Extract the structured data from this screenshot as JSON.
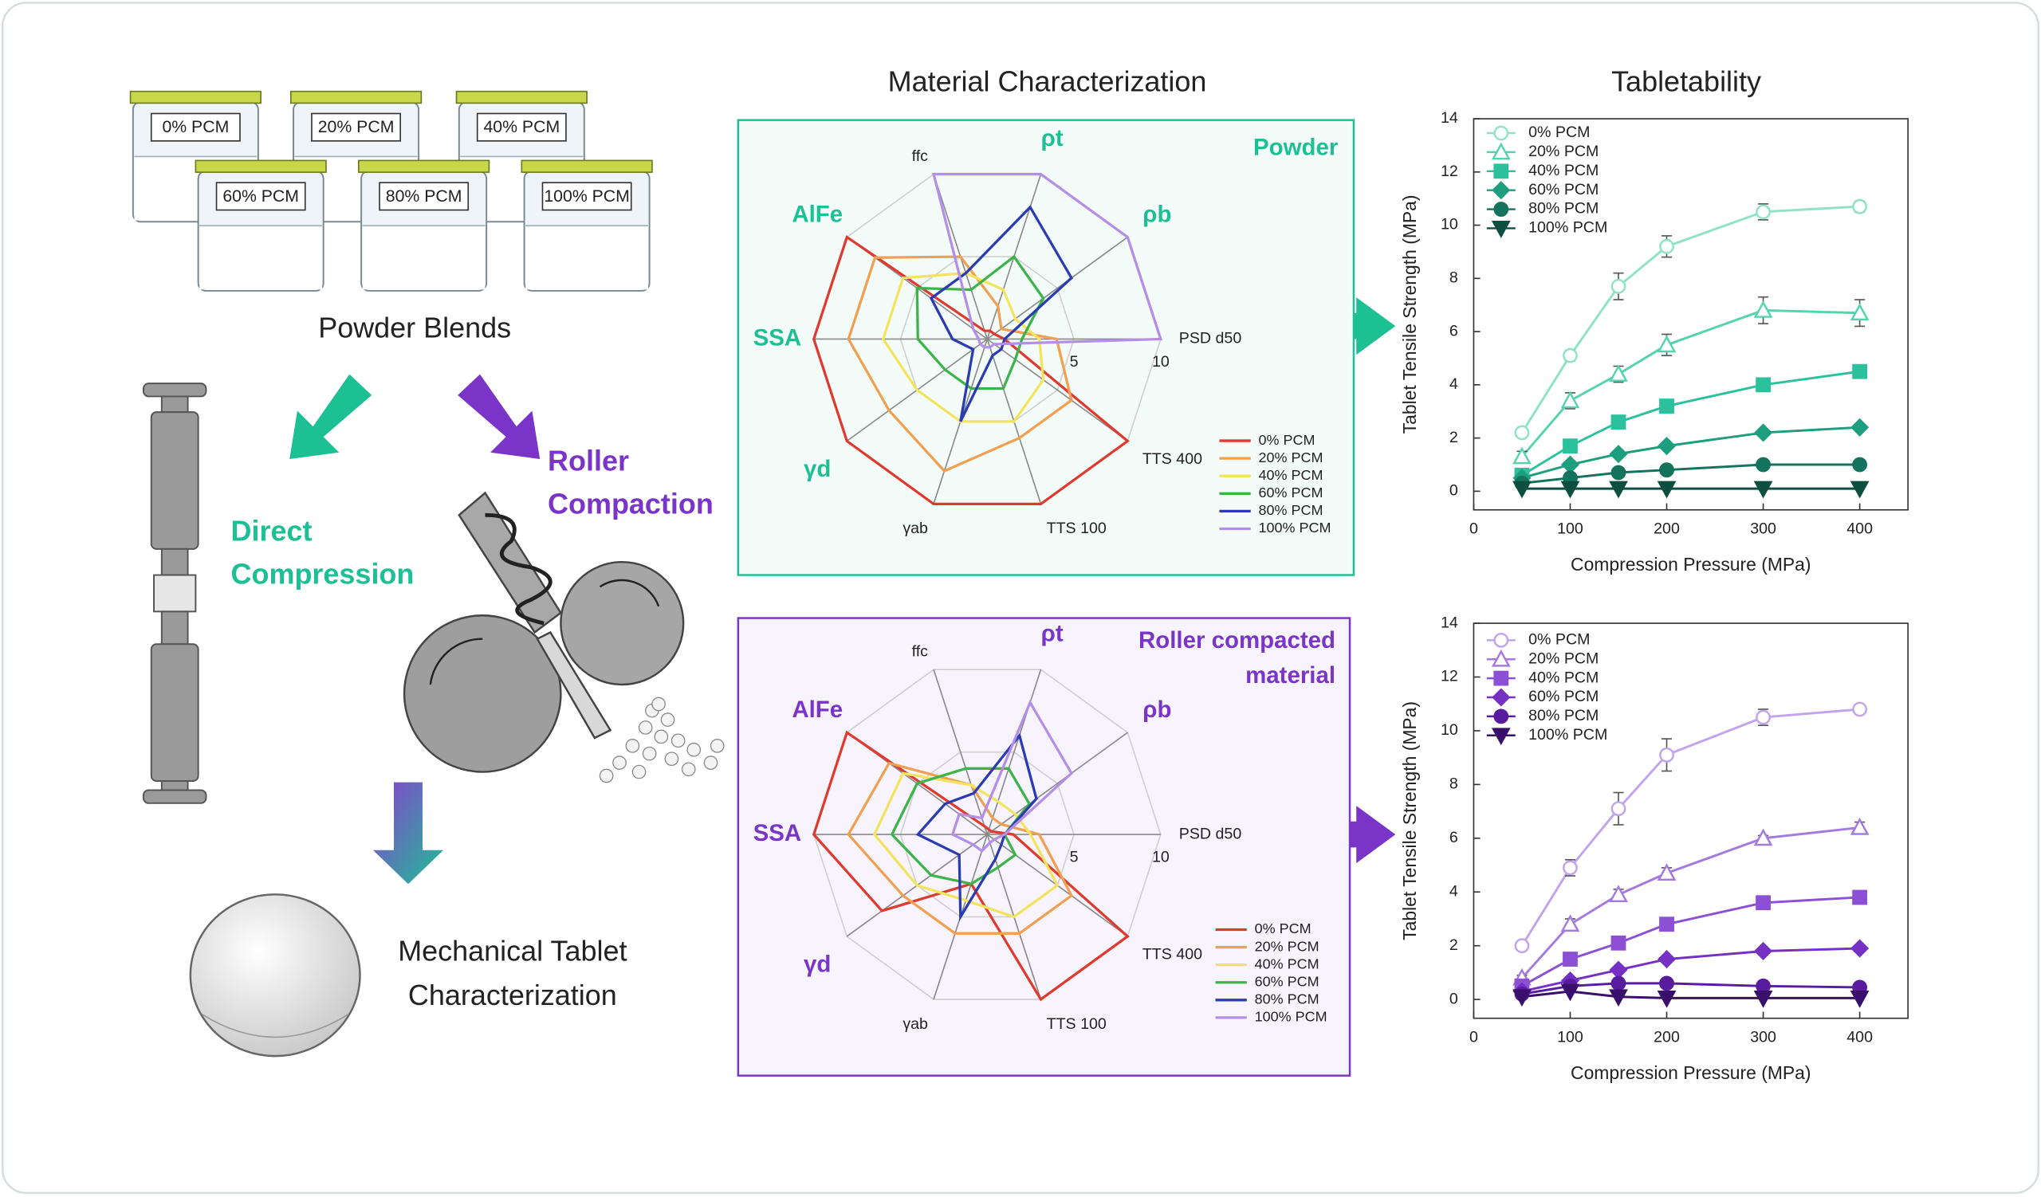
{
  "diagram": {
    "section_titles": [
      "Material Characterization",
      "Tabletability"
    ],
    "jar_labels": [
      "0% PCM",
      "20% PCM",
      "40% PCM",
      "60% PCM",
      "80% PCM",
      "100% PCM"
    ],
    "powder_blends": "Powder Blends",
    "direct_compression": [
      "Direct",
      "Compression"
    ],
    "roller_compaction": [
      "Roller",
      "Compaction"
    ],
    "tablet_characterization": [
      "Mechanical Tablet",
      "Characterization"
    ]
  },
  "chart_data": [
    {
      "type": "radar",
      "title": [
        "Powder"
      ],
      "accent": "#1dbf95",
      "background": "#f4fcf9",
      "axes": [
        "ffc",
        "ρt",
        "ρb",
        "PSD d50",
        "TTS 400",
        "TTS 100",
        "γab",
        "γd",
        "SSA",
        "AlFe"
      ],
      "highlight_axes": [
        1,
        2,
        7,
        8,
        9
      ],
      "rlim": [
        0,
        10
      ],
      "rticks": [
        5,
        10
      ],
      "legend": "lower right",
      "series": [
        {
          "name": "0% PCM",
          "color": "#e03a2f",
          "values": [
            0.5,
            0.5,
            0.5,
            1,
            10,
            10,
            10,
            10,
            10,
            10
          ]
        },
        {
          "name": "20% PCM",
          "color": "#f0a050",
          "values": [
            5,
            2,
            1,
            4,
            6,
            6,
            8,
            7,
            8,
            8
          ]
        },
        {
          "name": "40% PCM",
          "color": "#f2e45e",
          "values": [
            4,
            3,
            2,
            3,
            4,
            5,
            5,
            5,
            6,
            6
          ]
        },
        {
          "name": "60% PCM",
          "color": "#3cb44a",
          "values": [
            3,
            5,
            4,
            2,
            2,
            3,
            3,
            3,
            4,
            5
          ]
        },
        {
          "name": "80% PCM",
          "color": "#2b3bb0",
          "values": [
            4,
            8,
            6,
            1,
            1,
            1,
            5,
            1,
            2,
            4
          ]
        },
        {
          "name": "100% PCM",
          "color": "#b58ee8",
          "values": [
            10,
            10,
            10,
            10,
            0.5,
            0.5,
            0.5,
            0.5,
            0.5,
            1
          ]
        }
      ]
    },
    {
      "type": "radar",
      "title": [
        "Roller compacted",
        "material"
      ],
      "accent": "#7a35c8",
      "background": "#f8f4fd",
      "axes": [
        "ffc",
        "ρt",
        "ρb",
        "PSD d50",
        "TTS 400",
        "TTS 100",
        "γab",
        "γd",
        "SSA",
        "AlFe"
      ],
      "highlight_axes": [
        1,
        2,
        7,
        8,
        9
      ],
      "rlim": [
        0,
        10
      ],
      "rticks": [
        5,
        10
      ],
      "legend": "lower right",
      "series": [
        {
          "name": "0% PCM",
          "color": "#e03a2f",
          "values": [
            0.5,
            0.3,
            0.3,
            1.5,
            10,
            10,
            3,
            7.5,
            10,
            10
          ]
        },
        {
          "name": "20% PCM",
          "color": "#f0a050",
          "values": [
            3,
            1,
            1,
            3,
            6,
            6,
            6,
            6,
            8,
            7
          ]
        },
        {
          "name": "40% PCM",
          "color": "#f2e45e",
          "values": [
            3,
            2,
            2,
            2.5,
            5,
            5,
            4,
            5,
            6.5,
            6
          ]
        },
        {
          "name": "60% PCM",
          "color": "#3cb44a",
          "values": [
            4,
            4,
            3,
            1,
            2,
            2,
            3,
            4,
            5.5,
            5
          ]
        },
        {
          "name": "80% PCM",
          "color": "#2b3bb0",
          "values": [
            2.5,
            6,
            3.5,
            1,
            1,
            1.5,
            5,
            2,
            4,
            3
          ]
        },
        {
          "name": "100% PCM",
          "color": "#b58ee8",
          "values": [
            1,
            8,
            6,
            1,
            0.5,
            0.5,
            1,
            1,
            2,
            2
          ]
        }
      ]
    },
    {
      "type": "line",
      "xlabel": "Compression Pressure (MPa)",
      "ylabel": "Tablet Tensile Strength (MPa)",
      "x": [
        50,
        100,
        150,
        200,
        300,
        400
      ],
      "xlim": [
        0,
        450
      ],
      "xticks": [
        0,
        100,
        200,
        300,
        400
      ],
      "ylim": [
        -0.7,
        14
      ],
      "yticks": [
        0,
        2,
        4,
        6,
        8,
        10,
        12,
        14
      ],
      "legend": "upper left",
      "series": [
        {
          "name": "0% PCM",
          "color": "#8fe3c4",
          "marker": "circle-open",
          "values": [
            2.2,
            5.1,
            7.7,
            9.2,
            10.5,
            10.7
          ],
          "errors": [
            0.1,
            0.2,
            0.5,
            0.4,
            0.3,
            0.2
          ]
        },
        {
          "name": "20% PCM",
          "color": "#55d3ad",
          "marker": "triangle-open",
          "values": [
            1.3,
            3.4,
            4.4,
            5.5,
            6.8,
            6.7
          ],
          "errors": [
            0.2,
            0.3,
            0.3,
            0.4,
            0.5,
            0.5
          ]
        },
        {
          "name": "40% PCM",
          "color": "#2cc19d",
          "marker": "square",
          "values": [
            0.6,
            1.7,
            2.6,
            3.2,
            4.0,
            4.5
          ]
        },
        {
          "name": "60% PCM",
          "color": "#1d9e7f",
          "marker": "diamond",
          "values": [
            0.5,
            1.0,
            1.4,
            1.7,
            2.2,
            2.4
          ]
        },
        {
          "name": "80% PCM",
          "color": "#14735c",
          "marker": "circle",
          "values": [
            0.3,
            0.5,
            0.7,
            0.8,
            1.0,
            1.0
          ]
        },
        {
          "name": "100% PCM",
          "color": "#0c4f40",
          "marker": "triangle-down",
          "values": [
            0.1,
            0.1,
            0.1,
            0.1,
            0.1,
            0.1
          ]
        }
      ]
    },
    {
      "type": "line",
      "xlabel": "Compression Pressure (MPa)",
      "ylabel": "Tablet Tensile Strength (MPa)",
      "x": [
        50,
        100,
        150,
        200,
        300,
        400
      ],
      "xlim": [
        0,
        450
      ],
      "xticks": [
        0,
        100,
        200,
        300,
        400
      ],
      "ylim": [
        -0.7,
        14
      ],
      "yticks": [
        0,
        2,
        4,
        6,
        8,
        10,
        12,
        14
      ],
      "legend": "upper left",
      "series": [
        {
          "name": "0% PCM",
          "color": "#c3a3ec",
          "marker": "circle-open",
          "values": [
            2.0,
            4.9,
            7.1,
            9.1,
            10.5,
            10.8
          ],
          "errors": [
            0.1,
            0.3,
            0.6,
            0.6,
            0.3,
            0.1
          ]
        },
        {
          "name": "20% PCM",
          "color": "#a47ade",
          "marker": "triangle-open",
          "values": [
            0.8,
            2.8,
            3.9,
            4.7,
            6.0,
            6.4
          ],
          "errors": [
            0.1,
            0.2,
            0.2,
            0.2,
            0.1,
            0.2
          ]
        },
        {
          "name": "40% PCM",
          "color": "#8c50d4",
          "marker": "square",
          "values": [
            0.5,
            1.5,
            2.1,
            2.8,
            3.6,
            3.8
          ]
        },
        {
          "name": "60% PCM",
          "color": "#7431c4",
          "marker": "diamond",
          "values": [
            0.3,
            0.7,
            1.1,
            1.5,
            1.8,
            1.9
          ]
        },
        {
          "name": "80% PCM",
          "color": "#5a1c9e",
          "marker": "circle",
          "values": [
            0.2,
            0.5,
            0.6,
            0.6,
            0.5,
            0.45
          ]
        },
        {
          "name": "100% PCM",
          "color": "#3a0f6b",
          "marker": "triangle-down",
          "values": [
            0.1,
            0.3,
            0.1,
            0.05,
            0.05,
            0.05
          ]
        }
      ]
    }
  ]
}
